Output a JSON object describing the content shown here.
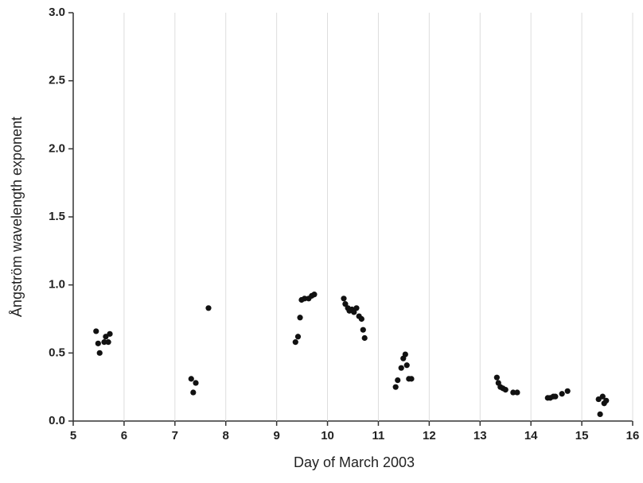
{
  "chart_data": {
    "type": "scatter",
    "xlabel": "Day of March 2003",
    "ylabel": "Ångström wavelength exponent",
    "color": "#111111",
    "grid": true,
    "xlim": [
      5,
      16
    ],
    "xticks": [
      5,
      6,
      7,
      8,
      9,
      10,
      11,
      12,
      13,
      14,
      15,
      16
    ],
    "ylim": [
      0,
      3
    ],
    "yticks": [
      {
        "value": 0,
        "label": "0.0"
      },
      0.5,
      {
        "value": 1,
        "label": "1.0"
      },
      1.5,
      {
        "value": 2,
        "label": "2.0"
      },
      2.5,
      {
        "value": 3,
        "label": "3.0"
      }
    ],
    "x": [
      5.45,
      5.49,
      5.52,
      5.61,
      5.64,
      5.69,
      5.72,
      7.32,
      7.36,
      7.41,
      7.66,
      9.37,
      9.42,
      9.46,
      9.49,
      9.55,
      9.63,
      9.69,
      9.74,
      10.32,
      10.35,
      10.4,
      10.43,
      10.48,
      10.52,
      10.57,
      10.62,
      10.67,
      10.7,
      10.73,
      11.34,
      11.38,
      11.45,
      11.49,
      11.53,
      11.56,
      11.6,
      11.65,
      13.33,
      13.36,
      13.4,
      13.45,
      13.5,
      13.65,
      13.73,
      14.33,
      14.38,
      14.44,
      14.48,
      14.61,
      14.72,
      15.33,
      15.36,
      15.41,
      15.44,
      15.48
    ],
    "values": [
      0.66,
      0.57,
      0.5,
      0.58,
      0.62,
      0.58,
      0.64,
      0.31,
      0.21,
      0.28,
      0.83,
      0.58,
      0.62,
      0.76,
      0.89,
      0.9,
      0.9,
      0.92,
      0.93,
      0.9,
      0.86,
      0.83,
      0.81,
      0.82,
      0.8,
      0.83,
      0.77,
      0.75,
      0.67,
      0.61,
      0.25,
      0.3,
      0.39,
      0.46,
      0.49,
      0.41,
      0.31,
      0.31,
      0.32,
      0.28,
      0.25,
      0.24,
      0.23,
      0.21,
      0.21,
      0.17,
      0.17,
      0.18,
      0.18,
      0.2,
      0.22,
      0.16,
      0.05,
      0.18,
      0.13,
      0.15
    ]
  }
}
